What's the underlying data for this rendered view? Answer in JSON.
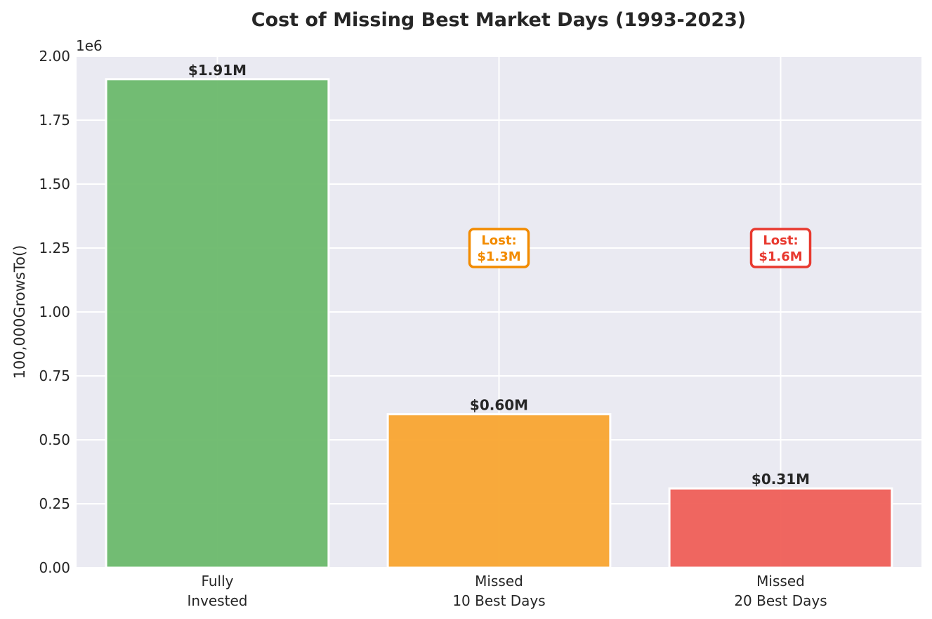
{
  "chart_data": {
    "type": "bar",
    "title": "Cost of Missing Best Market Days (1993-2023)",
    "ylabel": "100,000GrowsTo()",
    "y_offset_label": "1e6",
    "ylim": [
      0,
      2000000
    ],
    "ytick_values": [
      0,
      250000,
      500000,
      750000,
      1000000,
      1250000,
      1500000,
      1750000,
      2000000
    ],
    "ytick_labels": [
      "0.00",
      "0.25",
      "0.50",
      "0.75",
      "1.00",
      "1.25",
      "1.50",
      "1.75",
      "2.00"
    ],
    "grid": true,
    "categories": [
      {
        "lines": [
          "Fully",
          "Invested"
        ]
      },
      {
        "lines": [
          "Missed",
          "10 Best Days"
        ]
      },
      {
        "lines": [
          "Missed",
          "20 Best Days"
        ]
      }
    ],
    "values": [
      1910000,
      600000,
      310000
    ],
    "value_labels": [
      "$1.91M",
      "$0.60M",
      "$0.31M"
    ],
    "colors": [
      "#6cb96b",
      "#f9a530",
      "#ef5f57"
    ],
    "annotations": [
      {
        "category_index": 1,
        "lines": [
          "Lost:",
          "$1.3M"
        ],
        "y": 1250000,
        "color": "#f28b00"
      },
      {
        "category_index": 2,
        "lines": [
          "Lost:",
          "$1.6M"
        ],
        "y": 1250000,
        "color": "#e8392f"
      }
    ]
  }
}
